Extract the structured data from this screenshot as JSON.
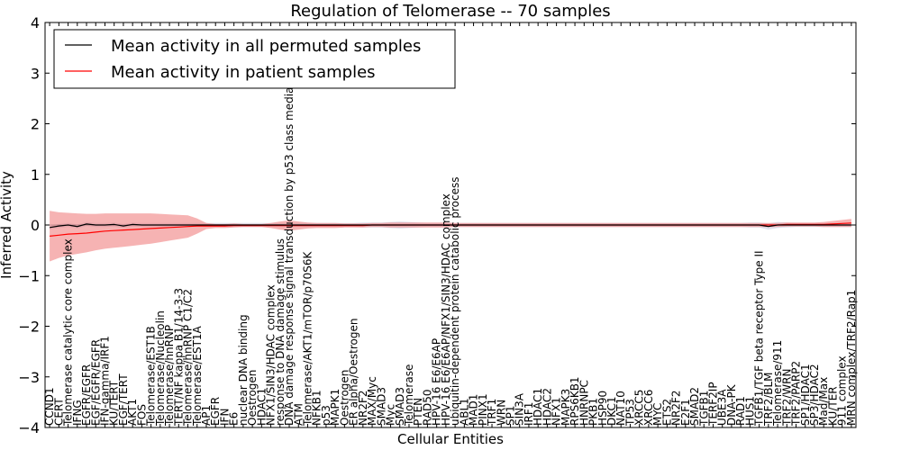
{
  "chart_data": {
    "type": "line",
    "title": "Regulation of Telomerase -- 70 samples",
    "xlabel": "Cellular Entities",
    "ylabel": "Inferred Activity",
    "ylim": [
      -4,
      4
    ],
    "yticks": [
      -4,
      -3,
      -2,
      -1,
      0,
      1,
      2,
      3,
      4
    ],
    "grid": false,
    "legend_position": "top-left",
    "categories": [
      "CCND1",
      "CERT",
      "Telomerase catalytic core complex",
      "IFNG",
      "EGFR/EGFR",
      "EGF/EGFR/EGFR",
      "IFN-gamma/IRF1",
      "KU/TERT",
      "EGF/TERT",
      "AKT1",
      "FOS",
      "Telomerase/EST1B",
      "Telomerase/Nucleolin",
      "Telomerase/hnRNP",
      "TERT/NF kappa B1/14-3-3",
      "Telomerase/hnRNP C1/C2",
      "Telomerase/EST1A",
      "AP1",
      "EGFR",
      "IFN",
      "E6",
      "nuclear DNA binding",
      "Oestrogen",
      "HDAC1",
      "NFX1/SIN3/HDAC complex",
      "response to DNA damage stimulus",
      "DNA damage response signal transduction by p53 class mediator",
      "ATM",
      "Telomerase/AKT1/mTOR/p70S6K",
      "NFKB1",
      "p53",
      "MAPK1",
      "Oestrogen",
      "ER alpha/Oestrogen",
      "NR2F2",
      "MAX/Myc",
      "SMAD3",
      "Myc",
      "SMAD3",
      "Telomerase",
      "PTEN",
      "RAD50",
      "HPV-16 E6/E6AP",
      "HPV-16 E6/E6AP/NFX1/SIN3/HDAC complex",
      "ubiquitin-dependent protein catabolic process",
      "ABL1",
      "MAD1",
      "PINX1",
      "TRF1",
      "WRN",
      "SP1",
      "SIN3A",
      "IRF1",
      "HDAC1",
      "HDAC2",
      "NFX1",
      "MAPK3",
      "RPS6KB1",
      "HNRNPC",
      "PKB1",
      "HSP90",
      "DKC1",
      "NAT10",
      "TP53",
      "XRCC5",
      "XRCC6",
      "MYC",
      "ETS2",
      "NR2F2",
      "E2F1",
      "SMAD2",
      "TGFB1",
      "TERF2IP",
      "UBE3A",
      "DNA-PK",
      "RAD1",
      "HUS1",
      "TGFB1/TGF beta receptor Type II",
      "TRF2/BLM",
      "Telomerase/911",
      "TRF2/WRN",
      "TRF2/PARP2",
      "SP1/HDAC1",
      "SP3/HDAC2",
      "Mad/Max",
      "KU/TER",
      "911 complex",
      "MRN complex/TRF2/Rap1"
    ],
    "series": [
      {
        "name": "Mean activity in all permuted samples",
        "color": "#000000",
        "band_color": "#b8bdd8",
        "values": [
          -0.05,
          -0.02,
          0.0,
          -0.03,
          0.02,
          0.0,
          0.0,
          0.01,
          -0.02,
          0.01,
          0.0,
          0.0,
          0.0,
          0.0,
          0.0,
          0.0,
          0.0,
          0.0,
          0.0,
          0.0,
          0.0,
          0.0,
          0.0,
          0.0,
          0.0,
          0.0,
          0.0,
          0.0,
          0.0,
          0.0,
          0.0,
          0.0,
          0.0,
          0.0,
          0.0,
          0.0,
          0.0,
          0.0,
          0.0,
          0.0,
          0.0,
          0.0,
          0.0,
          0.0,
          0.0,
          0.0,
          0.0,
          0.0,
          0.0,
          0.0,
          0.0,
          0.0,
          0.0,
          0.0,
          0.0,
          0.0,
          0.0,
          0.0,
          0.0,
          0.0,
          0.0,
          0.0,
          0.0,
          0.0,
          0.0,
          0.0,
          0.0,
          0.0,
          0.0,
          0.0,
          0.0,
          0.0,
          0.0,
          0.0,
          0.0,
          0.0,
          0.0,
          0.0,
          -0.03,
          0.0,
          0.0,
          0.0,
          0.0,
          0.0,
          0.0,
          0.0,
          0.0,
          0.0
        ],
        "band": [
          0.04,
          0.04,
          0.04,
          0.04,
          0.04,
          0.04,
          0.04,
          0.04,
          0.04,
          0.04,
          0.04,
          0.04,
          0.04,
          0.04,
          0.04,
          0.04,
          0.04,
          0.04,
          0.04,
          0.04,
          0.04,
          0.04,
          0.04,
          0.04,
          0.04,
          0.04,
          0.04,
          0.04,
          0.04,
          0.04,
          0.04,
          0.04,
          0.04,
          0.04,
          0.05,
          0.05,
          0.05,
          0.06,
          0.07,
          0.06,
          0.05,
          0.04,
          0.04,
          0.04,
          0.04,
          0.04,
          0.04,
          0.04,
          0.04,
          0.04,
          0.04,
          0.04,
          0.04,
          0.04,
          0.04,
          0.04,
          0.04,
          0.04,
          0.04,
          0.04,
          0.04,
          0.04,
          0.04,
          0.04,
          0.04,
          0.04,
          0.04,
          0.04,
          0.04,
          0.04,
          0.04,
          0.04,
          0.04,
          0.04,
          0.04,
          0.04,
          0.05,
          0.05,
          0.06,
          0.06,
          0.05,
          0.04,
          0.04,
          0.04,
          0.04,
          0.04,
          0.04,
          0.04
        ]
      },
      {
        "name": "Mean activity in patient samples",
        "color": "#ff0000",
        "band_color": "#f08080",
        "values": [
          -0.22,
          -0.2,
          -0.18,
          -0.17,
          -0.16,
          -0.14,
          -0.12,
          -0.11,
          -0.1,
          -0.09,
          -0.08,
          -0.07,
          -0.06,
          -0.05,
          -0.04,
          -0.03,
          -0.02,
          -0.02,
          -0.02,
          -0.02,
          -0.01,
          -0.01,
          -0.01,
          -0.01,
          -0.01,
          -0.01,
          -0.01,
          -0.01,
          -0.01,
          -0.01,
          -0.01,
          -0.01,
          -0.01,
          -0.01,
          -0.01,
          0.0,
          0.0,
          0.0,
          0.0,
          0.0,
          0.0,
          0.0,
          0.0,
          0.0,
          0.0,
          0.0,
          0.0,
          0.0,
          0.0,
          0.0,
          0.0,
          0.0,
          0.0,
          0.0,
          0.0,
          0.0,
          0.0,
          0.0,
          0.0,
          0.0,
          0.0,
          0.0,
          0.0,
          0.0,
          0.0,
          0.0,
          0.0,
          0.0,
          0.0,
          0.0,
          0.0,
          0.0,
          0.0,
          0.0,
          0.0,
          0.0,
          0.0,
          0.0,
          0.0,
          0.0,
          0.01,
          0.01,
          0.01,
          0.01,
          0.01,
          0.02,
          0.03,
          0.04
        ],
        "band": [
          0.5,
          0.45,
          0.42,
          0.4,
          0.38,
          0.36,
          0.35,
          0.34,
          0.33,
          0.32,
          0.31,
          0.3,
          0.28,
          0.26,
          0.24,
          0.22,
          0.15,
          0.06,
          0.04,
          0.04,
          0.04,
          0.03,
          0.03,
          0.03,
          0.05,
          0.08,
          0.1,
          0.08,
          0.06,
          0.05,
          0.05,
          0.05,
          0.04,
          0.04,
          0.04,
          0.04,
          0.04,
          0.05,
          0.05,
          0.05,
          0.05,
          0.05,
          0.05,
          0.05,
          0.04,
          0.04,
          0.04,
          0.04,
          0.04,
          0.04,
          0.04,
          0.04,
          0.04,
          0.04,
          0.04,
          0.04,
          0.04,
          0.04,
          0.04,
          0.04,
          0.04,
          0.04,
          0.04,
          0.04,
          0.04,
          0.04,
          0.04,
          0.04,
          0.04,
          0.04,
          0.04,
          0.04,
          0.04,
          0.04,
          0.04,
          0.04,
          0.04,
          0.04,
          0.04,
          0.04,
          0.04,
          0.04,
          0.04,
          0.04,
          0.05,
          0.06,
          0.07,
          0.08
        ]
      }
    ]
  }
}
